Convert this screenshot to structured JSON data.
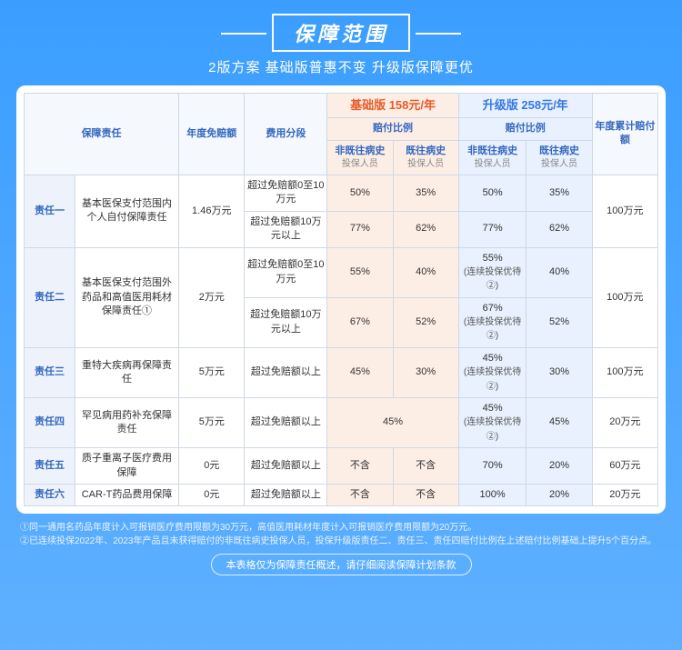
{
  "title": "保障范围",
  "subtitle": "2版方案   基础版普惠不变   升级版保障更优",
  "headers": {
    "duty": "保障责任",
    "deductible": "年度免赔额",
    "segment": "费用分段",
    "plan_basic": "基础版 158元/年",
    "plan_upgrade": "升级版 258元/年",
    "annual_cap": "年度累计赔付额",
    "ratio": "赔付比例",
    "no_history": "非既往病史",
    "has_history": "既往病史",
    "insured": "投保人员"
  },
  "rows": [
    {
      "label": "责任一",
      "duty": "基本医保支付范围内个人自付保障责任",
      "deductible": "1.46万元",
      "segments": [
        {
          "seg": "超过免赔额0至10万元",
          "b_no": "50%",
          "b_has": "35%",
          "u_no": "50%",
          "u_has": "35%"
        },
        {
          "seg": "超过免赔额10万元以上",
          "b_no": "77%",
          "b_has": "62%",
          "u_no": "77%",
          "u_has": "62%"
        }
      ],
      "cap": "100万元"
    },
    {
      "label": "责任二",
      "duty": "基本医保支付范围外药品和高值医用耗材保障责任①",
      "deductible": "2万元",
      "segments": [
        {
          "seg": "超过免赔额0至10万元",
          "b_no": "55%",
          "b_has": "40%",
          "u_no": "55%\n(连续投保优待②)",
          "u_has": "40%"
        },
        {
          "seg": "超过免赔额10万元以上",
          "b_no": "67%",
          "b_has": "52%",
          "u_no": "67%\n(连续投保优待②)",
          "u_has": "52%"
        }
      ],
      "cap": "100万元"
    },
    {
      "label": "责任三",
      "duty": "重特大疾病再保障责任",
      "deductible": "5万元",
      "segments": [
        {
          "seg": "超过免赔额以上",
          "b_no": "45%",
          "b_has": "30%",
          "u_no": "45%\n(连续投保优待②)",
          "u_has": "30%"
        }
      ],
      "cap": "100万元"
    },
    {
      "label": "责任四",
      "duty": "罕见病用药补充保障责任",
      "deductible": "5万元",
      "segments": [
        {
          "seg": "超过免赔额以上",
          "b_merged": "45%",
          "u_no": "45%\n(连续投保优待②)",
          "u_has": "45%"
        }
      ],
      "cap": "20万元"
    },
    {
      "label": "责任五",
      "duty": "质子重离子医疗费用保障",
      "deductible": "0元",
      "segments": [
        {
          "seg": "超过免赔额以上",
          "b_no": "不含",
          "b_has": "不含",
          "u_no": "70%",
          "u_has": "20%"
        }
      ],
      "cap": "60万元"
    },
    {
      "label": "责任六",
      "duty": "CAR-T药品费用保障",
      "deductible": "0元",
      "segments": [
        {
          "seg": "超过免赔额以上",
          "b_no": "不含",
          "b_has": "不含",
          "u_no": "100%",
          "u_has": "20%"
        }
      ],
      "cap": "20万元"
    }
  ],
  "footnotes": [
    "①同一通用名药品年度计入可报销医疗费用限额为30万元，高值医用耗材年度计入可报销医疗费用限额为20万元。",
    "②已连续投保2022年、2023年产品且未获得赔付的非既往病史投保人员，投保升级版责任二、责任三、责任四赔付比例在上述赔付比例基础上提升5个百分点。"
  ],
  "disclaimer": "本表格仅为保障责任概述，请仔细阅读保障计划条款"
}
